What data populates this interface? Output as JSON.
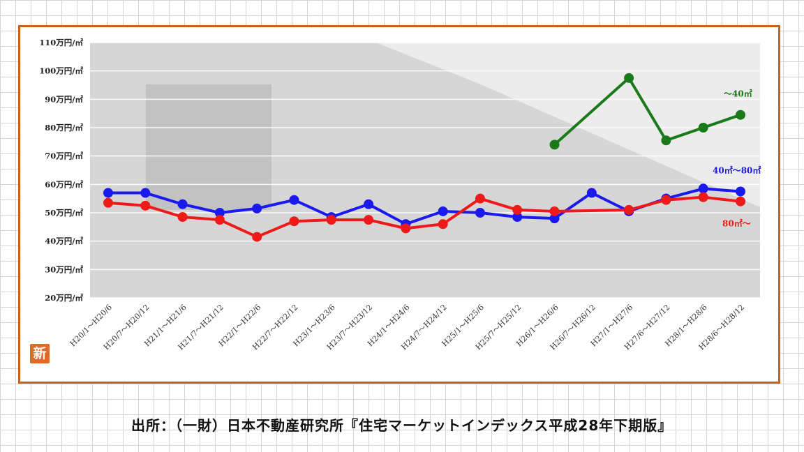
{
  "chart_data": {
    "type": "line",
    "title": "",
    "xlabel": "",
    "ylabel": "",
    "ylim": [
      20,
      110
    ],
    "y_ticks": [
      "110万円/㎡",
      "100万円/㎡",
      "90万円/㎡",
      "80万円/㎡",
      "70万円/㎡",
      "60万円/㎡",
      "50万円/㎡",
      "40万円/㎡",
      "30万円/㎡",
      "20万円/㎡"
    ],
    "categories": [
      "H20/1～H20/6",
      "H20/7～H20/12",
      "H21/1～H21/6",
      "H21/7～H21/12",
      "H22/1～H22/6",
      "H22/7～H22/12",
      "H23/1～H23/6",
      "H23/7～H23/12",
      "H24/1～H24/6",
      "H24/7～H24/12",
      "H25/1～H25/6",
      "H25/7～H25/12",
      "H26/1～H26/6",
      "H26/7～H26/12",
      "H27/1～H27/6",
      "H27/6～H27/12",
      "H28/1～H28/6",
      "H28/6～H28/12"
    ],
    "grid": true,
    "series": [
      {
        "name": "～40㎡",
        "color": "#1a7a1a",
        "values": [
          null,
          null,
          null,
          null,
          null,
          null,
          null,
          null,
          null,
          null,
          null,
          null,
          74,
          null,
          97.5,
          75.5,
          80,
          84.5
        ]
      },
      {
        "name": "40㎡～80㎡",
        "color": "#1a1aee",
        "values": [
          57,
          57,
          53,
          50,
          51.5,
          54.5,
          48.5,
          53,
          46,
          50.5,
          50,
          48.5,
          48,
          57,
          50.5,
          55,
          58.5,
          57.5
        ]
      },
      {
        "name": "80㎡～",
        "color": "#ee1a1a",
        "values": [
          53.5,
          52.5,
          48.5,
          47.5,
          41.5,
          47,
          47.5,
          47.5,
          44.5,
          46,
          55,
          51,
          50.5,
          null,
          51,
          54.5,
          55.5,
          54
        ]
      }
    ]
  },
  "badge": "新",
  "source": "出所：（一財）日本不動産研究所『住宅マーケットインデックス平成28年下期版』"
}
